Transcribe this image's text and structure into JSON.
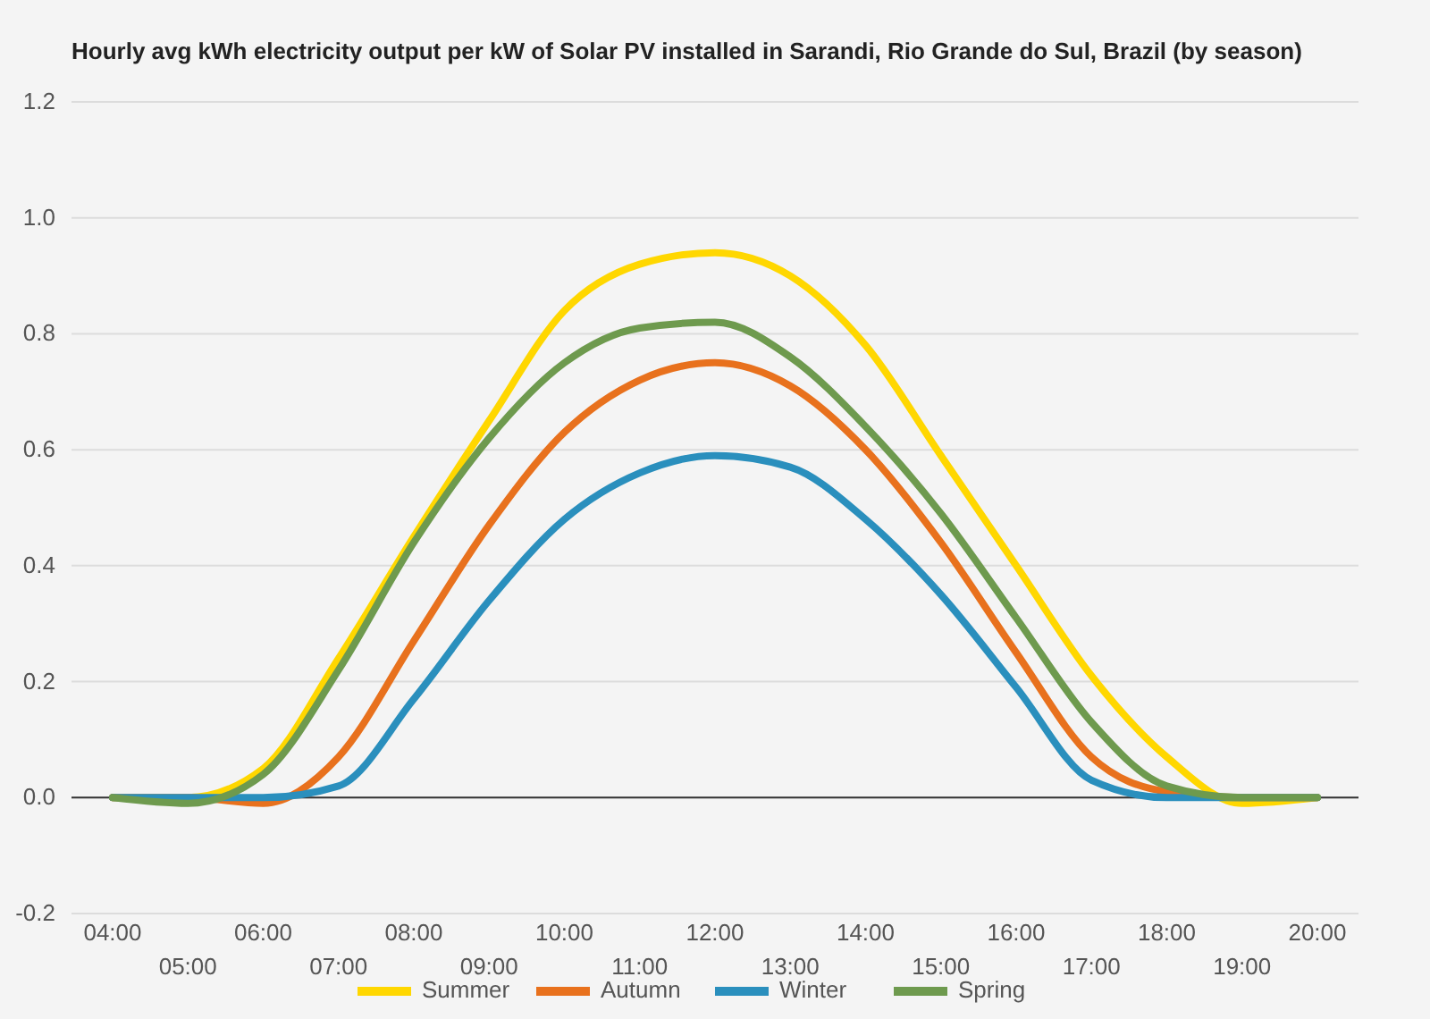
{
  "chart_data": {
    "type": "line",
    "title": "Hourly avg kWh electricity output per kW of Solar PV installed in Sarandi, Rio Grande do Sul, Brazil (by season)",
    "categories": [
      "04:00",
      "05:00",
      "06:00",
      "07:00",
      "08:00",
      "09:00",
      "10:00",
      "11:00",
      "12:00",
      "13:00",
      "14:00",
      "15:00",
      "16:00",
      "17:00",
      "18:00",
      "19:00",
      "20:00"
    ],
    "series": [
      {
        "name": "Summer",
        "color": "#ffd700",
        "values": [
          0,
          0,
          0.05,
          0.24,
          0.45,
          0.65,
          0.84,
          0.92,
          0.94,
          0.9,
          0.78,
          0.59,
          0.4,
          0.21,
          0.07,
          -0.01,
          0
        ]
      },
      {
        "name": "Autumn",
        "color": "#e8711d",
        "values": [
          0,
          0,
          -0.01,
          0.07,
          0.27,
          0.47,
          0.63,
          0.72,
          0.75,
          0.71,
          0.6,
          0.44,
          0.25,
          0.07,
          0.01,
          0,
          0
        ]
      },
      {
        "name": "Winter",
        "color": "#2a8fbd",
        "values": [
          0,
          0,
          0,
          0.02,
          0.17,
          0.34,
          0.48,
          0.56,
          0.59,
          0.57,
          0.48,
          0.35,
          0.19,
          0.03,
          0,
          0,
          0
        ]
      },
      {
        "name": "Spring",
        "color": "#6e9a4e",
        "values": [
          0,
          -0.01,
          0.04,
          0.22,
          0.44,
          0.62,
          0.75,
          0.81,
          0.82,
          0.76,
          0.64,
          0.49,
          0.31,
          0.13,
          0.02,
          0,
          0
        ]
      }
    ],
    "ylim": [
      -0.2,
      1.2
    ],
    "yticks": [
      {
        "value": -0.2,
        "label": "-0.2"
      },
      {
        "value": 0,
        "label": "0.0"
      },
      {
        "value": 0.2,
        "label": "0.2"
      },
      {
        "value": 0.4,
        "label": "0.4"
      },
      {
        "value": 0.6,
        "label": "0.6"
      },
      {
        "value": 0.8,
        "label": "0.8"
      },
      {
        "value": 1,
        "label": "1.0"
      },
      {
        "value": 1.2,
        "label": "1.2"
      }
    ],
    "grid": "y",
    "legend": "bottom",
    "marker": "none",
    "line_style": "solid"
  }
}
